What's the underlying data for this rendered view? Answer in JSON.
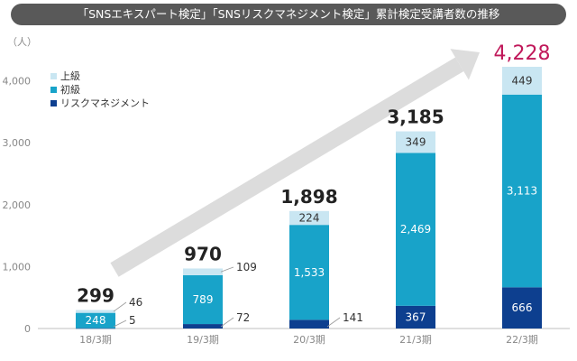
{
  "chart_data": {
    "type": "bar",
    "title": "「SNSエキスパート検定」「SNSリスクマネジメント検定」累計検定受講者数の推移",
    "ylabel": "（人）",
    "ylim": [
      0,
      4228
    ],
    "yticks": [
      0,
      1000,
      2000,
      3000,
      4000
    ],
    "ytick_labels": [
      "0",
      "1,000",
      "2,000",
      "3,000",
      "4,000"
    ],
    "categories": [
      "18/3期",
      "19/3期",
      "20/3期",
      "21/3期",
      "22/3期"
    ],
    "series": [
      {
        "name": "リスクマネジメント",
        "values": [
          5,
          72,
          141,
          367,
          666
        ],
        "labels": [
          "5",
          "72",
          "141",
          "367",
          "666"
        ],
        "color": "#0d3f8f"
      },
      {
        "name": "初級",
        "values": [
          248,
          789,
          1533,
          2469,
          3113
        ],
        "labels": [
          "248",
          "789",
          "1,533",
          "2,469",
          "3,113"
        ],
        "color": "#18a3c9"
      },
      {
        "name": "上級",
        "values": [
          46,
          109,
          224,
          349,
          449
        ],
        "labels": [
          "46",
          "109",
          "224",
          "349",
          "449"
        ],
        "color": "#c9e6f2"
      }
    ],
    "totals": [
      299,
      970,
      1898,
      3185,
      4228
    ],
    "total_labels": [
      "299",
      "970",
      "1,898",
      "3,185",
      "4,228"
    ],
    "legend_position": "top-left",
    "grid": false,
    "colors": {
      "highlight_total": "#c0185a",
      "arrow": "#d9d9d9",
      "text": "#333333",
      "axis": "#888888"
    }
  }
}
